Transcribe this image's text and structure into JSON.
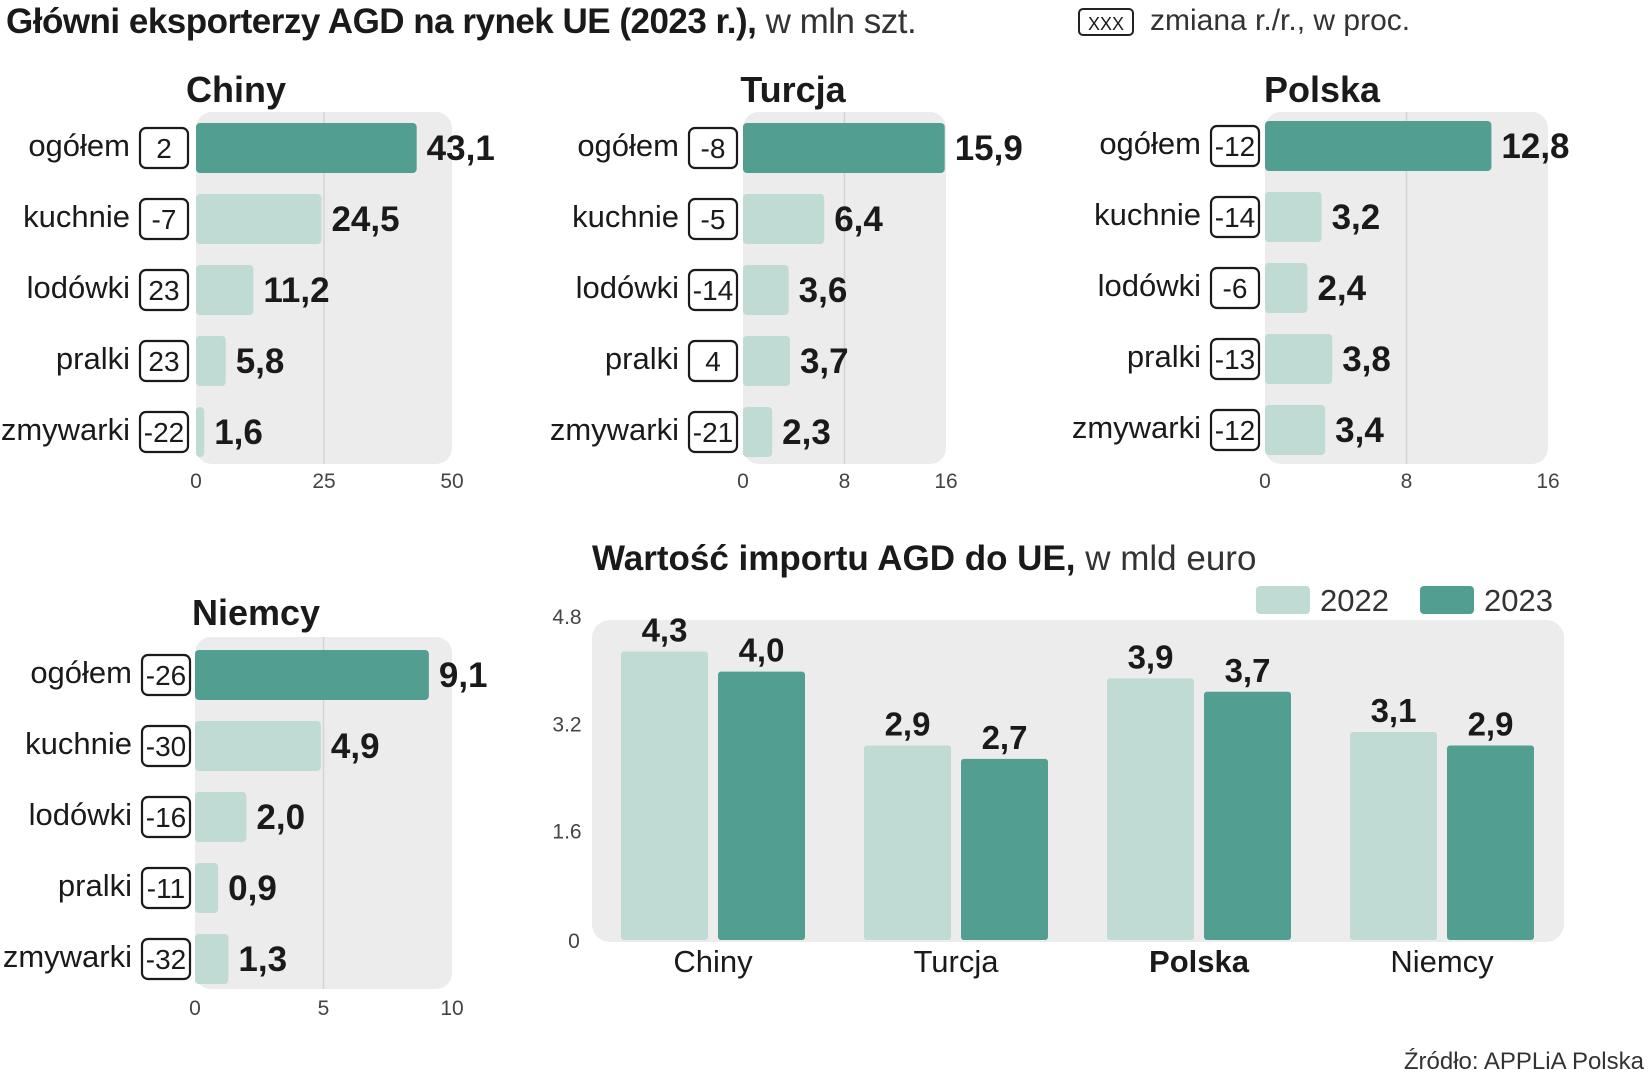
{
  "header": {
    "title_bold": "Główni eksporterzy AGD na rynek UE (2023 r.),",
    "title_unit": "w mln szt.",
    "legend_box": "XXX",
    "legend_text": "zmiana r./r., w proc."
  },
  "colors": {
    "dark": "#529e91",
    "light": "#bfdbd3",
    "panel_bg": "#ececec"
  },
  "chart_data": [
    {
      "type": "bar",
      "orientation": "horizontal",
      "title": "Chiny",
      "categories": [
        "ogółem",
        "kuchnie",
        "lodówki",
        "pralki",
        "zmywarki"
      ],
      "values": [
        43.1,
        24.5,
        11.2,
        5.8,
        1.6
      ],
      "value_labels": [
        "43,1",
        "24,5",
        "11,2",
        "5,8",
        "1,6"
      ],
      "changes": [
        "2",
        "-7",
        "23",
        "23",
        "-22"
      ],
      "ticks": [
        0,
        25,
        50
      ],
      "xlim": [
        0,
        50
      ]
    },
    {
      "type": "bar",
      "orientation": "horizontal",
      "title": "Turcja",
      "categories": [
        "ogółem",
        "kuchnie",
        "lodówki",
        "pralki",
        "zmywarki"
      ],
      "values": [
        15.9,
        6.4,
        3.6,
        3.7,
        2.3
      ],
      "value_labels": [
        "15,9",
        "6,4",
        "3,6",
        "3,7",
        "2,3"
      ],
      "changes": [
        "-8",
        "-5",
        "-14",
        "4",
        "-21"
      ],
      "ticks": [
        0,
        8,
        16
      ],
      "xlim": [
        0,
        16
      ]
    },
    {
      "type": "bar",
      "orientation": "horizontal",
      "title": "Polska",
      "categories": [
        "ogółem",
        "kuchnie",
        "lodówki",
        "pralki",
        "zmywarki"
      ],
      "values": [
        12.8,
        3.2,
        2.4,
        3.8,
        3.4
      ],
      "value_labels": [
        "12,8",
        "3,2",
        "2,4",
        "3,8",
        "3,4"
      ],
      "changes": [
        "-12",
        "-14",
        "-6",
        "-13",
        "-12"
      ],
      "ticks": [
        0,
        8,
        16
      ],
      "xlim": [
        0,
        16
      ]
    },
    {
      "type": "bar",
      "orientation": "horizontal",
      "title": "Niemcy",
      "categories": [
        "ogółem",
        "kuchnie",
        "lodówki",
        "pralki",
        "zmywarki"
      ],
      "values": [
        9.1,
        4.9,
        2.0,
        0.9,
        1.3
      ],
      "value_labels": [
        "9,1",
        "4,9",
        "2,0",
        "0,9",
        "1,3"
      ],
      "changes": [
        "-26",
        "-30",
        "-16",
        "-11",
        "-32"
      ],
      "ticks": [
        0,
        5,
        10
      ],
      "xlim": [
        0,
        10
      ]
    },
    {
      "type": "bar",
      "orientation": "vertical",
      "title_bold": "Wartość importu AGD do UE,",
      "title_unit": "w mld euro",
      "categories": [
        "Chiny",
        "Turcja",
        "Polska",
        "Niemcy"
      ],
      "bold_category": "Polska",
      "series": [
        {
          "name": "2022",
          "values": [
            4.3,
            2.9,
            3.9,
            3.1
          ],
          "labels": [
            "4,3",
            "2,9",
            "3,9",
            "3,1"
          ]
        },
        {
          "name": "2023",
          "values": [
            4.0,
            2.7,
            3.7,
            2.9
          ],
          "labels": [
            "4,0",
            "2,7",
            "3,7",
            "2,9"
          ]
        }
      ],
      "ticks": [
        "0",
        "1.6",
        "3.2",
        "4.8"
      ],
      "tick_values": [
        0,
        1.6,
        3.2,
        4.8
      ],
      "ylim": [
        0,
        4.8
      ]
    }
  ],
  "source": "Źródło: APPLiA Polska"
}
